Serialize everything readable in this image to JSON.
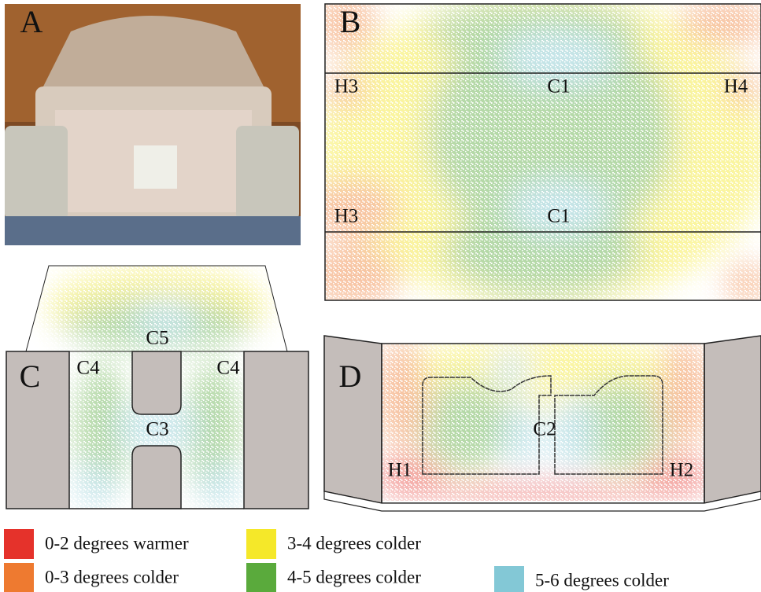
{
  "panels": [
    {
      "letter": "A"
    },
    {
      "letter": "B",
      "labels": [
        "H3",
        "C1",
        "H4",
        "H3",
        "C1"
      ]
    },
    {
      "letter": "C",
      "labels": [
        "C5",
        "C4",
        "C4",
        "C3"
      ]
    },
    {
      "letter": "D",
      "labels": [
        "C2",
        "H1",
        "H2"
      ]
    }
  ],
  "legend": [
    {
      "label": "0-2 degrees warmer",
      "color": "#e5322b"
    },
    {
      "label": "3-4 degrees colder",
      "color": "#f5e829"
    },
    {
      "label": "0-3 degrees colder",
      "color": "#ee7a30"
    },
    {
      "label": "4-5 degrees colder",
      "color": "#5aaa3c"
    },
    {
      "label": "5-6 degrees colder",
      "color": "#83c8d6"
    }
  ]
}
